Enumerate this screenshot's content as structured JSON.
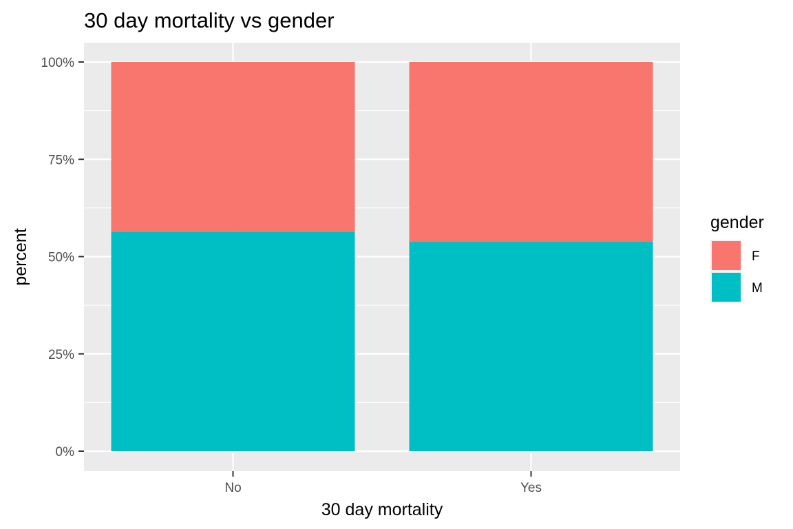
{
  "chart_data": {
    "type": "bar",
    "stacked": true,
    "percent": true,
    "title": "30 day mortality vs gender",
    "xlabel": "30 day mortality",
    "ylabel": "percent",
    "categories": [
      "No",
      "Yes"
    ],
    "series": [
      {
        "name": "F",
        "color": "#F8766D",
        "values": [
          43.6,
          46.2
        ]
      },
      {
        "name": "M",
        "color": "#00BFC4",
        "values": [
          56.4,
          53.8
        ]
      }
    ],
    "ylim": [
      0,
      100
    ],
    "yticks": [
      0,
      25,
      50,
      75,
      100
    ],
    "ytick_labels": [
      "0%",
      "25%",
      "50%",
      "75%",
      "100%"
    ],
    "grid": true,
    "legend": {
      "title": "gender",
      "position": "right"
    }
  }
}
